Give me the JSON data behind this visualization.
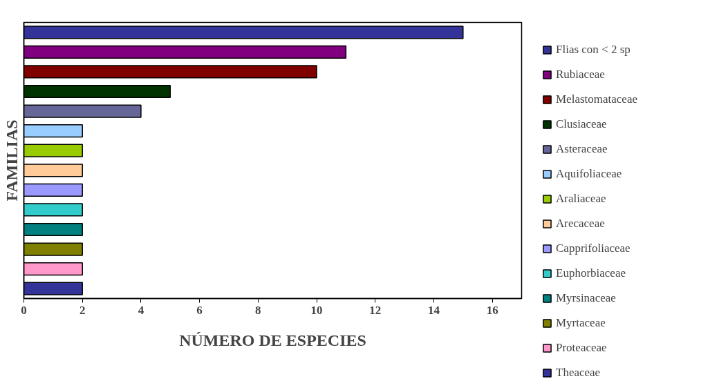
{
  "chart_data": {
    "type": "bar",
    "orientation": "horizontal",
    "xlabel": "NÚMERO DE ESPECIES",
    "ylabel": "FAMILIAS",
    "categories": [
      null,
      null,
      null,
      null,
      null,
      null,
      null,
      null,
      null,
      null,
      null,
      null,
      null,
      null
    ],
    "series": [
      {
        "name": "Flias con < 2 sp",
        "color": "#333399",
        "values": [
          15,
          null,
          null,
          null,
          null,
          null,
          null,
          null,
          null,
          null,
          null,
          null,
          null,
          null
        ]
      },
      {
        "name": "Rubiaceae",
        "color": "#800080",
        "values": [
          null,
          11,
          null,
          null,
          null,
          null,
          null,
          null,
          null,
          null,
          null,
          null,
          null,
          null
        ]
      },
      {
        "name": "Melastomataceae",
        "color": "#800000",
        "values": [
          null,
          null,
          10,
          null,
          null,
          null,
          null,
          null,
          null,
          null,
          null,
          null,
          null,
          null
        ]
      },
      {
        "name": "Clusiaceae",
        "color": "#003300",
        "values": [
          null,
          null,
          null,
          5,
          null,
          null,
          null,
          null,
          null,
          null,
          null,
          null,
          null,
          null
        ]
      },
      {
        "name": "Asteraceae",
        "color": "#666699",
        "values": [
          null,
          null,
          null,
          null,
          4,
          null,
          null,
          null,
          null,
          null,
          null,
          null,
          null,
          null
        ]
      },
      {
        "name": "Aquifoliaceae",
        "color": "#99ccff",
        "values": [
          null,
          null,
          null,
          null,
          null,
          2,
          null,
          null,
          null,
          null,
          null,
          null,
          null,
          null
        ]
      },
      {
        "name": "Araliaceae",
        "color": "#99cc00",
        "values": [
          null,
          null,
          null,
          null,
          null,
          null,
          2,
          null,
          null,
          null,
          null,
          null,
          null,
          null
        ]
      },
      {
        "name": "Arecaceae",
        "color": "#ffcc99",
        "values": [
          null,
          null,
          null,
          null,
          null,
          null,
          null,
          2,
          null,
          null,
          null,
          null,
          null,
          null
        ]
      },
      {
        "name": "Capprifoliaceae",
        "color": "#9999ff",
        "values": [
          null,
          null,
          null,
          null,
          null,
          null,
          null,
          null,
          2,
          null,
          null,
          null,
          null,
          null
        ]
      },
      {
        "name": "Euphorbiaceae",
        "color": "#33cccc",
        "values": [
          null,
          null,
          null,
          null,
          null,
          null,
          null,
          null,
          null,
          2,
          null,
          null,
          null,
          null
        ]
      },
      {
        "name": "Myrsinaceae",
        "color": "#008080",
        "values": [
          null,
          null,
          null,
          null,
          null,
          null,
          null,
          null,
          null,
          null,
          2,
          null,
          null,
          null
        ]
      },
      {
        "name": "Myrtaceae",
        "color": "#808000",
        "values": [
          null,
          null,
          null,
          null,
          null,
          null,
          null,
          null,
          null,
          null,
          null,
          2,
          null,
          null
        ]
      },
      {
        "name": "Proteaceae",
        "color": "#ff99cc",
        "values": [
          null,
          null,
          null,
          null,
          null,
          null,
          null,
          null,
          null,
          null,
          null,
          null,
          2,
          null
        ]
      },
      {
        "name": "Theaceae",
        "color": "#333399",
        "values": [
          null,
          null,
          null,
          null,
          null,
          null,
          null,
          null,
          null,
          null,
          null,
          null,
          null,
          2
        ]
      }
    ],
    "xlim": [
      0,
      17
    ],
    "xticks": [
      0,
      2,
      4,
      6,
      8,
      10,
      12,
      14,
      16
    ],
    "tick_labels": "x",
    "legend": "right",
    "grid": false
  }
}
